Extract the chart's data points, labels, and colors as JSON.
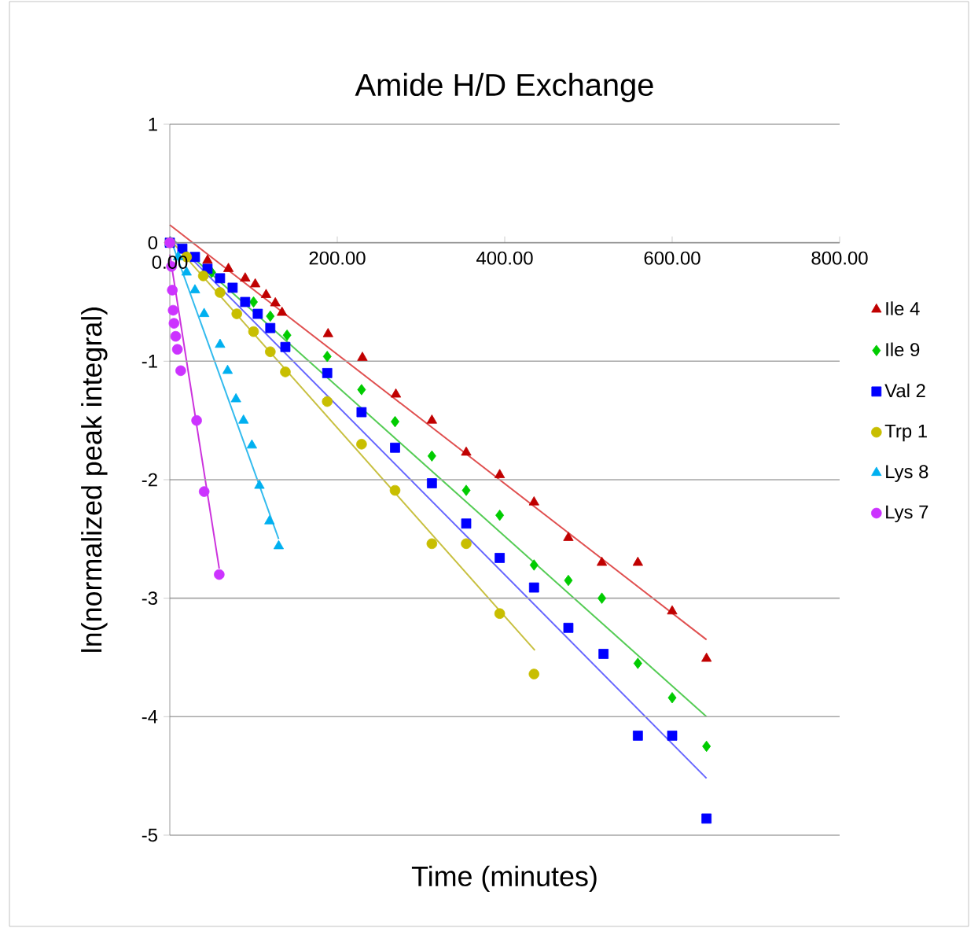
{
  "chart_data": {
    "type": "scatter",
    "title": "Amide H/D Exchange",
    "xlabel": "Time (minutes)",
    "ylabel": "ln(normalized peak integral)",
    "xlim": [
      0,
      800
    ],
    "ylim": [
      -5,
      1
    ],
    "xticks": [
      {
        "value": 0,
        "label": "0.00"
      },
      {
        "value": 200,
        "label": "200.00"
      },
      {
        "value": 400,
        "label": "400.00"
      },
      {
        "value": 600,
        "label": "600.00"
      },
      {
        "value": 800,
        "label": "800.00"
      }
    ],
    "yticks": [
      -5,
      -4,
      -3,
      -2,
      -1,
      0,
      1
    ],
    "grid": "y",
    "legend": "right",
    "series": [
      {
        "name": "Ile 4",
        "marker": "triangle",
        "color": "#c00000",
        "x": [
          0,
          45,
          70,
          90,
          102,
          115,
          126,
          134,
          189,
          230,
          270,
          313,
          354,
          394,
          435,
          476,
          516,
          559,
          600,
          641
        ],
        "values": [
          0,
          -0.15,
          -0.22,
          -0.3,
          -0.35,
          -0.44,
          -0.51,
          -0.59,
          -0.77,
          -0.97,
          -1.28,
          -1.5,
          -1.77,
          -1.96,
          -2.19,
          -2.49,
          -2.7,
          -2.7,
          -3.11,
          -3.51
        ]
      },
      {
        "name": "Ile 9",
        "marker": "diamond",
        "color": "#00cc00",
        "x": [
          50,
          100,
          120,
          140,
          188,
          229,
          269,
          313,
          354,
          394,
          435,
          476,
          516,
          559,
          600,
          641
        ],
        "values": [
          -0.25,
          -0.5,
          -0.62,
          -0.78,
          -0.96,
          -1.24,
          -1.51,
          -1.8,
          -2.09,
          -2.3,
          -2.72,
          -2.85,
          -3.0,
          -3.55,
          -3.84,
          -4.25
        ]
      },
      {
        "name": "Val 2",
        "marker": "square",
        "color": "#0000ff",
        "x": [
          0,
          15,
          30,
          45,
          60,
          75,
          90,
          105,
          120,
          138,
          188,
          229,
          269,
          313,
          354,
          394,
          435,
          476,
          518,
          559,
          600,
          641
        ],
        "values": [
          0,
          -0.05,
          -0.12,
          -0.22,
          -0.3,
          -0.38,
          -0.5,
          -0.6,
          -0.72,
          -0.88,
          -1.1,
          -1.43,
          -1.73,
          -2.03,
          -2.37,
          -2.66,
          -2.91,
          -3.25,
          -3.47,
          -4.16,
          -4.16,
          -4.86
        ]
      },
      {
        "name": "Trp 1",
        "marker": "circle",
        "color": "#c8be00",
        "x": [
          0,
          20,
          40,
          60,
          80,
          100,
          120,
          138,
          188,
          229,
          269,
          313,
          354,
          394,
          435
        ],
        "values": [
          0,
          -0.12,
          -0.28,
          -0.42,
          -0.6,
          -0.75,
          -0.92,
          -1.09,
          -1.34,
          -1.7,
          -2.09,
          -2.54,
          -2.54,
          -3.13,
          -3.64
        ]
      },
      {
        "name": "Lys 8",
        "marker": "triangle",
        "color": "#00b0f0",
        "x": [
          0,
          10,
          20,
          30,
          41,
          60,
          69,
          79,
          88,
          98,
          107,
          119,
          130
        ],
        "values": [
          0,
          -0.12,
          -0.25,
          -0.4,
          -0.6,
          -0.86,
          -1.08,
          -1.32,
          -1.5,
          -1.71,
          -2.05,
          -2.35,
          -2.56
        ]
      },
      {
        "name": "Lys 7",
        "marker": "circle",
        "color": "#cc33ff",
        "x": [
          0,
          2,
          3,
          4,
          5,
          7,
          9,
          13,
          32,
          41,
          59
        ],
        "values": [
          0,
          -0.2,
          -0.4,
          -0.57,
          -0.68,
          -0.79,
          -0.9,
          -1.08,
          -1.5,
          -2.1,
          -2.8
        ]
      },
      {
        "type": "line",
        "marker": "none",
        "color": "#e05050",
        "x": [
          0,
          641
        ],
        "values": [
          0.15,
          -3.35
        ]
      },
      {
        "type": "line",
        "marker": "none",
        "color": "#55cc55",
        "x": [
          0,
          641
        ],
        "values": [
          0.05,
          -4.0
        ]
      },
      {
        "type": "line",
        "marker": "none",
        "color": "#6666ff",
        "x": [
          0,
          641
        ],
        "values": [
          0.05,
          -4.52
        ]
      },
      {
        "type": "line",
        "marker": "none",
        "color": "#c8c040",
        "x": [
          0,
          436
        ],
        "values": [
          0.03,
          -3.44
        ]
      },
      {
        "type": "line",
        "marker": "none",
        "color": "#33bbee",
        "x": [
          0,
          130
        ],
        "values": [
          0.05,
          -2.5
        ]
      },
      {
        "type": "line",
        "marker": "none",
        "color": "#cc33dd",
        "x": [
          0,
          59
        ],
        "values": [
          -0.1,
          -2.75
        ]
      }
    ]
  }
}
